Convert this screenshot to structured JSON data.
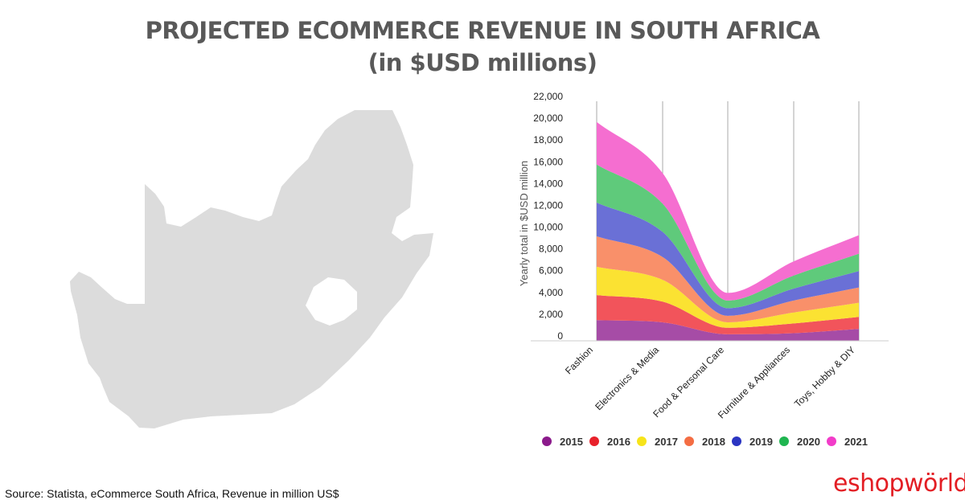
{
  "title_line1": "PROJECTED ECOMMERCE REVENUE IN SOUTH AFRICA",
  "title_line2": "(in $USD millions)",
  "source": "Source: Statista, eCommerce South Africa, Revenue in million US$",
  "logo": {
    "e": "e",
    "rest": "shopwörld"
  },
  "map": {
    "icon": "south-africa-map-icon",
    "color": "#dcdcdc"
  },
  "chart_data": {
    "type": "area",
    "stacked": true,
    "title": "",
    "xlabel": "",
    "ylabel": "Yearly total in $USD million",
    "ylim": [
      0,
      22000
    ],
    "yticks": [
      0,
      2000,
      4000,
      6000,
      8000,
      10000,
      12000,
      14000,
      16000,
      18000,
      20000,
      22000
    ],
    "ytick_labels": [
      "0",
      "2,000",
      "4,000",
      "6,000",
      "8,000",
      "10,000",
      "12,000",
      "14,000",
      "16,000",
      "18,000",
      "20,000",
      "22,000"
    ],
    "categories": [
      "Fashion",
      "Electronics & Media",
      "Food & Personal Care",
      "Furniture & Appliances",
      "Toys, Hobby & DIY"
    ],
    "legend_position": "bottom",
    "grid": "vertical",
    "series": [
      {
        "name": "2015",
        "color": "#a64ca6",
        "values": [
          1900,
          1700,
          600,
          700,
          1100
        ]
      },
      {
        "name": "2016",
        "color": "#f2545b",
        "values": [
          2300,
          1900,
          600,
          900,
          1100
        ]
      },
      {
        "name": "2017",
        "color": "#fbe232",
        "values": [
          2600,
          2000,
          500,
          1000,
          1300
        ]
      },
      {
        "name": "2018",
        "color": "#f9906a",
        "values": [
          2800,
          2100,
          600,
          1100,
          1400
        ]
      },
      {
        "name": "2019",
        "color": "#6a70d6",
        "values": [
          3100,
          2300,
          700,
          1100,
          1500
        ]
      },
      {
        "name": "2020",
        "color": "#5fca7b",
        "values": [
          3500,
          2600,
          700,
          1200,
          1600
        ]
      },
      {
        "name": "2021",
        "color": "#f56ed0",
        "values": [
          3900,
          2800,
          700,
          1300,
          1700
        ]
      }
    ],
    "legend_marker_colors": [
      "#8b1a8b",
      "#e8212b",
      "#f7e41a",
      "#f46d43",
      "#2b35c2",
      "#1fb550",
      "#f23cc9"
    ]
  }
}
